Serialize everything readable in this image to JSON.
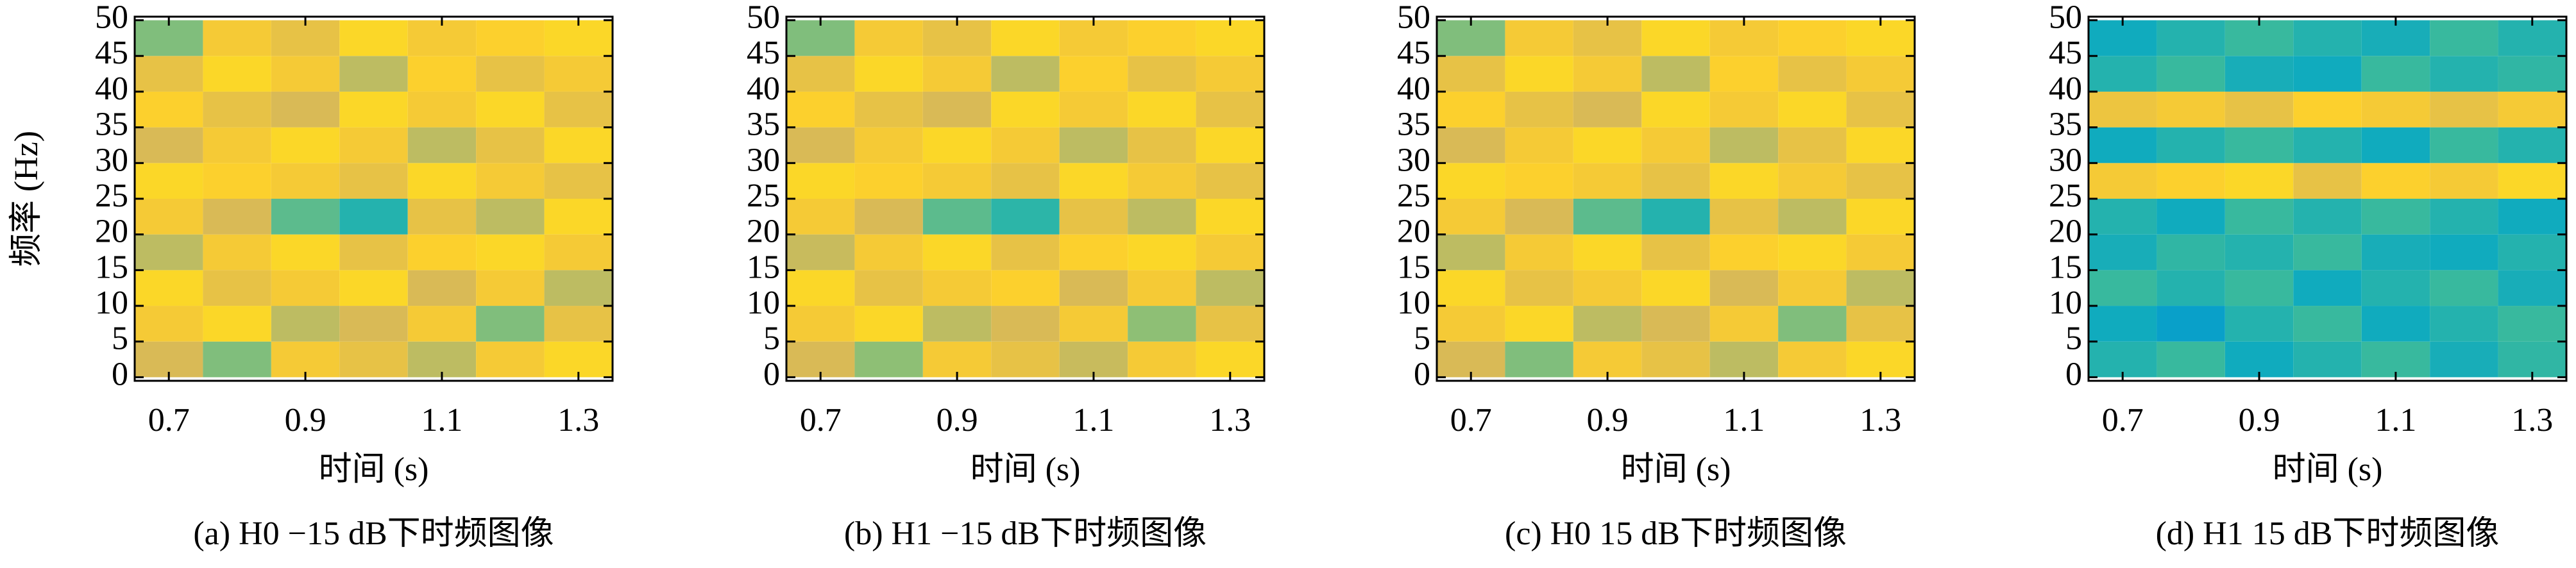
{
  "chart_data": [
    {
      "type": "heatmap",
      "title": "(a) H0 −15 dB下时频图像",
      "x_label": "时间 (s)",
      "y_label": "频率 (Hz)",
      "x_bins": [
        0.65,
        0.75,
        0.85,
        0.95,
        1.05,
        1.15,
        1.25,
        1.35
      ],
      "y_bins": [
        0,
        5,
        10,
        15,
        20,
        25,
        30,
        35,
        40,
        45,
        50
      ],
      "xlim": [
        0.65,
        1.35
      ],
      "ylim": [
        -0.5,
        50.5
      ],
      "xticks": [
        0.7,
        0.9,
        1.1,
        1.3
      ],
      "yticks": [
        0,
        5,
        10,
        15,
        20,
        25,
        30,
        35,
        40,
        45,
        50
      ],
      "clim": [
        0,
        1
      ],
      "colormap": [
        "#352a87",
        "#0363e1",
        "#1485d4",
        "#06a7c6",
        "#38b99e",
        "#92bf73",
        "#d9ba56",
        "#fcce2e",
        "#f9fb0e"
      ],
      "values": [
        [
          0.75,
          0.6,
          0.85,
          0.8,
          0.7,
          0.85,
          0.9
        ],
        [
          0.85,
          0.9,
          0.7,
          0.75,
          0.85,
          0.6,
          0.8
        ],
        [
          0.9,
          0.8,
          0.85,
          0.9,
          0.75,
          0.85,
          0.7
        ],
        [
          0.7,
          0.85,
          0.9,
          0.8,
          0.88,
          0.9,
          0.85
        ],
        [
          0.85,
          0.75,
          0.55,
          0.45,
          0.8,
          0.7,
          0.9
        ],
        [
          0.9,
          0.88,
          0.85,
          0.8,
          0.9,
          0.85,
          0.8
        ],
        [
          0.75,
          0.85,
          0.9,
          0.85,
          0.7,
          0.8,
          0.9
        ],
        [
          0.88,
          0.8,
          0.75,
          0.9,
          0.85,
          0.9,
          0.8
        ],
        [
          0.8,
          0.9,
          0.85,
          0.7,
          0.88,
          0.8,
          0.85
        ],
        [
          0.6,
          0.85,
          0.8,
          0.9,
          0.85,
          0.88,
          0.9
        ]
      ]
    },
    {
      "type": "heatmap",
      "title": "(b) H1 −15 dB下时频图像",
      "x_label": "时间 (s)",
      "x_bins": [
        0.65,
        0.75,
        0.85,
        0.95,
        1.05,
        1.15,
        1.25,
        1.35
      ],
      "y_bins": [
        0,
        5,
        10,
        15,
        20,
        25,
        30,
        35,
        40,
        45,
        50
      ],
      "xlim": [
        0.65,
        1.35
      ],
      "ylim": [
        -0.5,
        50.5
      ],
      "xticks": [
        0.7,
        0.9,
        1.1,
        1.3
      ],
      "yticks": [
        0,
        5,
        10,
        15,
        20,
        25,
        30,
        35,
        40,
        45,
        50
      ],
      "clim": [
        0,
        1
      ],
      "colormap": [
        "#352a87",
        "#0363e1",
        "#1485d4",
        "#06a7c6",
        "#38b99e",
        "#92bf73",
        "#d9ba56",
        "#fcce2e",
        "#f9fb0e"
      ],
      "values": [
        [
          0.75,
          0.62,
          0.85,
          0.8,
          0.72,
          0.85,
          0.9
        ],
        [
          0.85,
          0.9,
          0.7,
          0.75,
          0.85,
          0.62,
          0.8
        ],
        [
          0.9,
          0.8,
          0.85,
          0.88,
          0.75,
          0.85,
          0.7
        ],
        [
          0.72,
          0.85,
          0.9,
          0.8,
          0.88,
          0.9,
          0.85
        ],
        [
          0.85,
          0.75,
          0.55,
          0.47,
          0.8,
          0.7,
          0.9
        ],
        [
          0.9,
          0.88,
          0.85,
          0.8,
          0.9,
          0.85,
          0.8
        ],
        [
          0.75,
          0.85,
          0.9,
          0.85,
          0.7,
          0.8,
          0.9
        ],
        [
          0.88,
          0.8,
          0.75,
          0.9,
          0.85,
          0.9,
          0.8
        ],
        [
          0.8,
          0.9,
          0.85,
          0.7,
          0.88,
          0.8,
          0.85
        ],
        [
          0.6,
          0.85,
          0.8,
          0.9,
          0.85,
          0.88,
          0.9
        ]
      ]
    },
    {
      "type": "heatmap",
      "title": "(c) H0 15 dB下时频图像",
      "x_label": "时间 (s)",
      "x_bins": [
        0.65,
        0.75,
        0.85,
        0.95,
        1.05,
        1.15,
        1.25,
        1.35
      ],
      "y_bins": [
        0,
        5,
        10,
        15,
        20,
        25,
        30,
        35,
        40,
        45,
        50
      ],
      "xlim": [
        0.65,
        1.35
      ],
      "ylim": [
        -0.5,
        50.5
      ],
      "xticks": [
        0.7,
        0.9,
        1.1,
        1.3
      ],
      "yticks": [
        0,
        5,
        10,
        15,
        20,
        25,
        30,
        35,
        40,
        45,
        50
      ],
      "clim": [
        0,
        1
      ],
      "colormap": [
        "#352a87",
        "#0363e1",
        "#1485d4",
        "#06a7c6",
        "#38b99e",
        "#92bf73",
        "#d9ba56",
        "#fcce2e",
        "#f9fb0e"
      ],
      "values": [
        [
          0.75,
          0.6,
          0.85,
          0.8,
          0.7,
          0.85,
          0.9
        ],
        [
          0.85,
          0.9,
          0.7,
          0.75,
          0.85,
          0.6,
          0.8
        ],
        [
          0.9,
          0.8,
          0.85,
          0.9,
          0.75,
          0.85,
          0.7
        ],
        [
          0.7,
          0.85,
          0.9,
          0.8,
          0.88,
          0.9,
          0.85
        ],
        [
          0.85,
          0.75,
          0.55,
          0.45,
          0.8,
          0.7,
          0.9
        ],
        [
          0.9,
          0.88,
          0.85,
          0.8,
          0.9,
          0.85,
          0.8
        ],
        [
          0.75,
          0.85,
          0.9,
          0.85,
          0.7,
          0.8,
          0.9
        ],
        [
          0.88,
          0.8,
          0.75,
          0.9,
          0.85,
          0.9,
          0.8
        ],
        [
          0.8,
          0.9,
          0.85,
          0.7,
          0.88,
          0.8,
          0.85
        ],
        [
          0.6,
          0.85,
          0.8,
          0.9,
          0.85,
          0.88,
          0.9
        ]
      ]
    },
    {
      "type": "heatmap",
      "title": "(d) H1 15 dB下时频图像",
      "x_label": "时间 (s)",
      "x_bins": [
        0.65,
        0.75,
        0.85,
        0.95,
        1.05,
        1.15,
        1.25,
        1.35
      ],
      "y_bins": [
        0,
        5,
        10,
        15,
        20,
        25,
        30,
        35,
        40,
        45,
        50
      ],
      "xlim": [
        0.65,
        1.35
      ],
      "ylim": [
        -0.5,
        50.5
      ],
      "xticks": [
        0.7,
        0.9,
        1.1,
        1.3
      ],
      "yticks": [
        0,
        5,
        10,
        15,
        20,
        25,
        30,
        35,
        40,
        45,
        50
      ],
      "clim": [
        0,
        1
      ],
      "colormap": [
        "#352a87",
        "#0363e1",
        "#1485d4",
        "#06a7c6",
        "#38b99e",
        "#92bf73",
        "#d9ba56",
        "#fcce2e",
        "#f9fb0e"
      ],
      "values": [
        [
          0.45,
          0.5,
          0.4,
          0.45,
          0.5,
          0.42,
          0.48
        ],
        [
          0.4,
          0.35,
          0.45,
          0.5,
          0.4,
          0.45,
          0.5
        ],
        [
          0.5,
          0.45,
          0.5,
          0.4,
          0.45,
          0.5,
          0.42
        ],
        [
          0.42,
          0.48,
          0.45,
          0.5,
          0.42,
          0.4,
          0.45
        ],
        [
          0.45,
          0.4,
          0.5,
          0.45,
          0.5,
          0.45,
          0.4
        ],
        [
          0.85,
          0.88,
          0.9,
          0.8,
          0.88,
          0.85,
          0.9
        ],
        [
          0.4,
          0.45,
          0.5,
          0.45,
          0.4,
          0.5,
          0.45
        ],
        [
          0.82,
          0.85,
          0.8,
          0.88,
          0.85,
          0.8,
          0.85
        ],
        [
          0.45,
          0.5,
          0.42,
          0.4,
          0.5,
          0.45,
          0.48
        ],
        [
          0.4,
          0.45,
          0.5,
          0.45,
          0.42,
          0.5,
          0.45
        ]
      ]
    }
  ]
}
